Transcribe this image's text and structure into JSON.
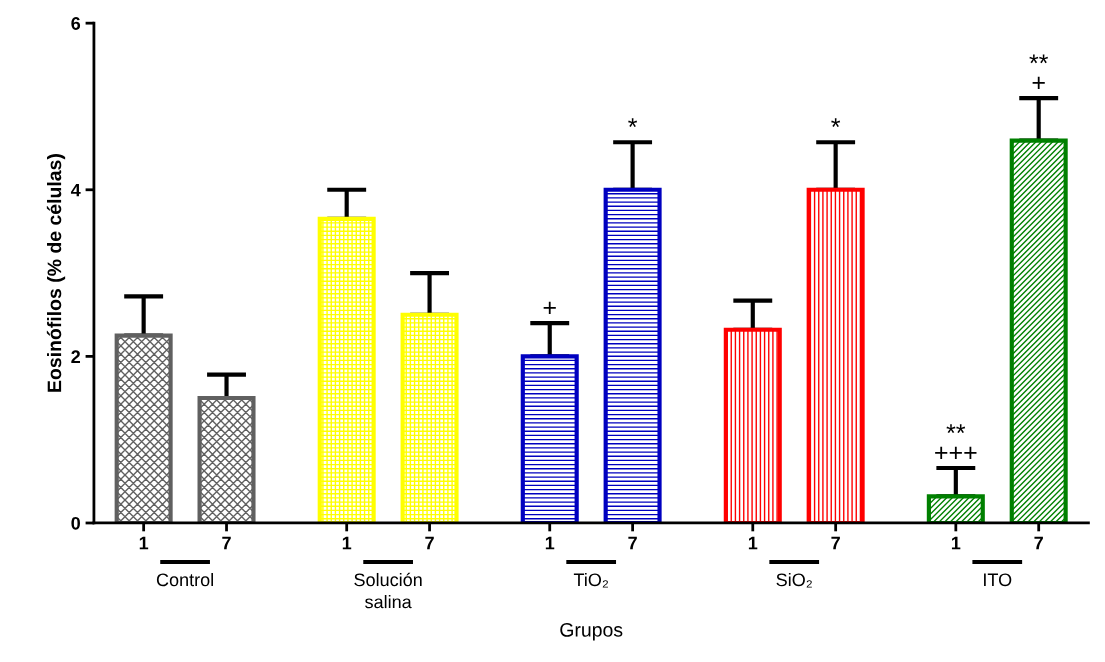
{
  "chart_data": {
    "type": "bar",
    "xlabel": "Grupos",
    "ylabel": "Eosinófilos (% de células)",
    "categories": [
      "1",
      "7",
      "1",
      "7",
      "1",
      "7",
      "1",
      "7",
      "1",
      "7"
    ],
    "values": [
      2.25,
      1.5,
      3.65,
      2.5,
      2.0,
      4.0,
      2.32,
      4.0,
      0.32,
      4.59
    ],
    "errors": [
      [
        2.25,
        2.72
      ],
      [
        1.5,
        1.78
      ],
      [
        3.65,
        4.0
      ],
      [
        2.5,
        3.0
      ],
      [
        2.0,
        2.4
      ],
      [
        4.0,
        4.57
      ],
      [
        2.32,
        2.67
      ],
      [
        4.0,
        4.57
      ],
      [
        0.32,
        0.66
      ],
      [
        4.59,
        5.1
      ]
    ],
    "colors": [
      "#606060",
      "#606060",
      "#ffff00",
      "#ffff00",
      "#0000c0",
      "#0000c0",
      "#ff0000",
      "#ff0000",
      "#008000",
      "#008000"
    ],
    "ylim": [
      0,
      6
    ],
    "yticks": [
      0,
      2,
      4,
      6
    ],
    "grid": false,
    "legend": false,
    "annotations": [
      "Control",
      "Solución\nsalina",
      "TiO₂",
      "SiO₂",
      "ITO",
      {
        "text": "+",
        "y": 2.4
      },
      {
        "text": "*",
        "y": 4.57
      },
      {
        "text": "*",
        "y": 4.57
      },
      {
        "text": "**\n+++",
        "y": 0.66
      },
      {
        "text": "**\n+",
        "y": 5.1
      }
    ]
  }
}
